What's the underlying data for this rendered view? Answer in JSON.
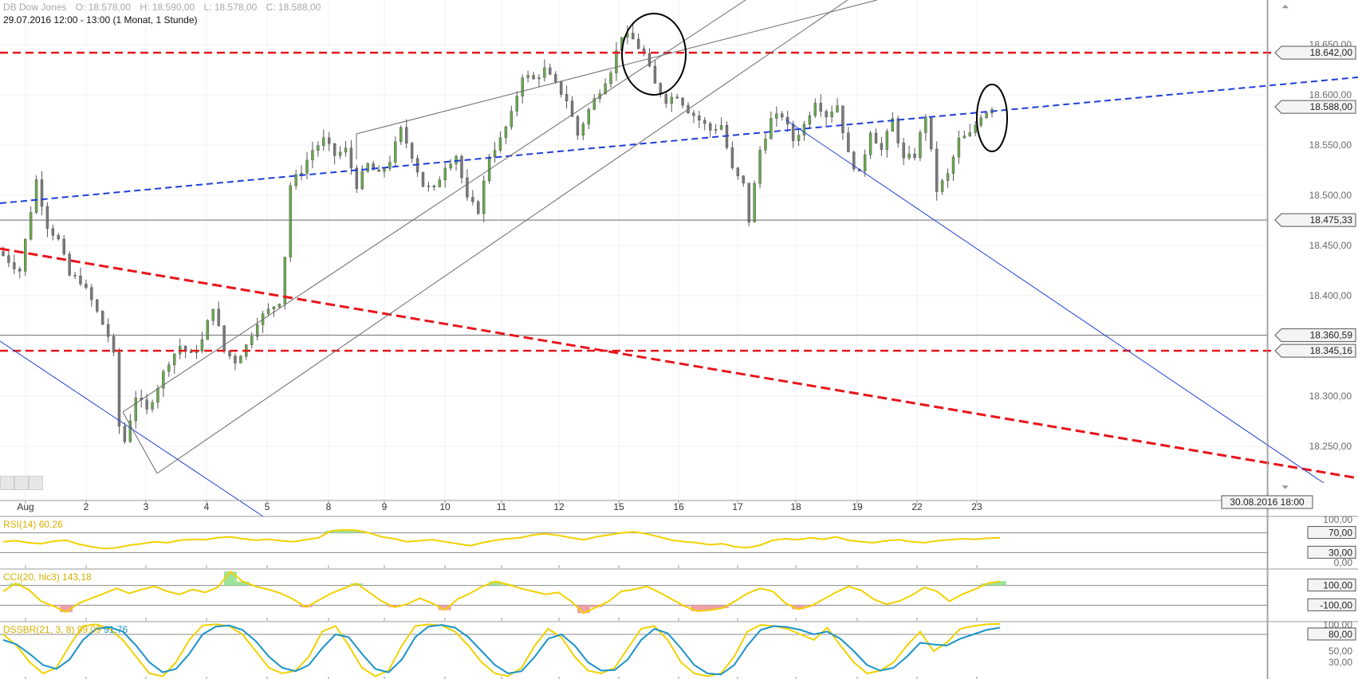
{
  "header": {
    "instrument": "DB Dow Jones",
    "open": "O: 18.578,00",
    "high": "H: 18.590,00",
    "low": "L: 18.578,00",
    "close": "C: 18.588,00",
    "range": "29.07.2016 12:00 - 13:00 (1 Monat, 1 Stunde)"
  },
  "crosshair_date": "30.08.2016 18:00",
  "colors": {
    "candle_up": "#6aa84f",
    "candle_down": "#7a7a7a",
    "trend_red": "#e8151b",
    "trend_blue": "#1f3fd8",
    "indicator_yellow": "#f2d100",
    "indicator_blue": "#1a93c8",
    "fill_green": "#9fe29a",
    "fill_red": "#f0a0a8",
    "level_gray": "#6a6a6a"
  },
  "chart_data": [
    {
      "type": "candlestick",
      "title": "DB Dow Jones",
      "x_labels": [
        "Aug",
        "2",
        "3",
        "4",
        "5",
        "8",
        "9",
        "10",
        "11",
        "12",
        "15",
        "16",
        "17",
        "18",
        "19",
        "22",
        "23"
      ],
      "y_ticks": [
        "18.650,00",
        "18.600,00",
        "18.550,00",
        "18.500,00",
        "18.450,00",
        "18.400,00",
        "18.300,00",
        "18.250,00"
      ],
      "ylim": [
        18240,
        18675
      ],
      "grid": true,
      "level_labels": [
        {
          "text": "18.642,00",
          "value": 18642
        },
        {
          "text": "18.588,00",
          "value": 18588
        },
        {
          "text": "18.475,33",
          "value": 18475.33
        },
        {
          "text": "18.360,59",
          "value": 18360.59
        },
        {
          "text": "18.345,16",
          "value": 18345.16
        }
      ],
      "horizontal_lines": [
        {
          "value": 18642,
          "style": "red-dashed"
        },
        {
          "value": 18345.16,
          "style": "red-dashed"
        },
        {
          "value": 18475.33,
          "style": "gray-solid"
        },
        {
          "value": 18360.59,
          "style": "gray-solid"
        }
      ],
      "close_path": [
        [
          0,
          18440
        ],
        [
          3,
          18425
        ],
        [
          6,
          18515
        ],
        [
          8,
          18470
        ],
        [
          10,
          18455
        ],
        [
          12,
          18420
        ],
        [
          14,
          18415
        ],
        [
          16,
          18395
        ],
        [
          19,
          18360
        ],
        [
          20,
          18340
        ],
        [
          21,
          18270
        ],
        [
          22,
          18255
        ],
        [
          24,
          18300
        ],
        [
          26,
          18285
        ],
        [
          28,
          18310
        ],
        [
          30,
          18335
        ],
        [
          32,
          18350
        ],
        [
          34,
          18340
        ],
        [
          36,
          18355
        ],
        [
          38,
          18390
        ],
        [
          40,
          18345
        ],
        [
          42,
          18335
        ],
        [
          44,
          18350
        ],
        [
          46,
          18375
        ],
        [
          48,
          18385
        ],
        [
          50,
          18395
        ],
        [
          51,
          18440
        ],
        [
          52,
          18510
        ],
        [
          54,
          18525
        ],
        [
          56,
          18545
        ],
        [
          58,
          18555
        ],
        [
          60,
          18540
        ],
        [
          62,
          18545
        ],
        [
          64,
          18510
        ],
        [
          66,
          18530
        ],
        [
          68,
          18520
        ],
        [
          70,
          18535
        ],
        [
          72,
          18565
        ],
        [
          74,
          18540
        ],
        [
          76,
          18510
        ],
        [
          78,
          18505
        ],
        [
          80,
          18530
        ],
        [
          82,
          18540
        ],
        [
          84,
          18495
        ],
        [
          86,
          18485
        ],
        [
          88,
          18540
        ],
        [
          90,
          18555
        ],
        [
          92,
          18580
        ],
        [
          94,
          18620
        ],
        [
          96,
          18615
        ],
        [
          98,
          18625
        ],
        [
          100,
          18610
        ],
        [
          102,
          18595
        ],
        [
          104,
          18560
        ],
        [
          106,
          18585
        ],
        [
          108,
          18605
        ],
        [
          110,
          18625
        ],
        [
          112,
          18660
        ],
        [
          114,
          18655
        ],
        [
          116,
          18640
        ],
        [
          118,
          18610
        ],
        [
          120,
          18595
        ],
        [
          122,
          18600
        ],
        [
          124,
          18585
        ],
        [
          126,
          18575
        ],
        [
          128,
          18565
        ],
        [
          130,
          18570
        ],
        [
          132,
          18525
        ],
        [
          134,
          18510
        ],
        [
          135,
          18475
        ],
        [
          137,
          18545
        ],
        [
          139,
          18575
        ],
        [
          141,
          18580
        ],
        [
          143,
          18555
        ],
        [
          145,
          18570
        ],
        [
          147,
          18595
        ],
        [
          149,
          18580
        ],
        [
          151,
          18590
        ],
        [
          153,
          18540
        ],
        [
          155,
          18520
        ],
        [
          157,
          18565
        ],
        [
          159,
          18545
        ],
        [
          161,
          18575
        ],
        [
          163,
          18535
        ],
        [
          165,
          18540
        ],
        [
          167,
          18580
        ],
        [
          169,
          18505
        ],
        [
          171,
          18520
        ],
        [
          173,
          18555
        ],
        [
          175,
          18560
        ],
        [
          177,
          18580
        ],
        [
          179,
          18588
        ]
      ],
      "annotations": [
        {
          "type": "circle",
          "target": "August 15 high",
          "value": 18660
        },
        {
          "type": "circle",
          "target": "August 23 last",
          "value": 18588
        }
      ]
    },
    {
      "type": "line",
      "title": "RSI(14)",
      "latest_value": "60,26",
      "y_ticks": [
        "100,00",
        "70,00",
        "30,00",
        "0,00"
      ],
      "ylim": [
        0,
        100
      ],
      "thresholds": [
        70,
        30
      ],
      "values": [
        52,
        54,
        50,
        48,
        53,
        55,
        47,
        42,
        38,
        40,
        45,
        48,
        52,
        50,
        55,
        57,
        56,
        60,
        62,
        58,
        55,
        57,
        54,
        52,
        56,
        60,
        74,
        76,
        75,
        70,
        62,
        58,
        52,
        54,
        56,
        52,
        48,
        44,
        50,
        55,
        58,
        60,
        66,
        68,
        65,
        60,
        56,
        62,
        66,
        70,
        72,
        68,
        62,
        55,
        52,
        50,
        46,
        48,
        42,
        40,
        45,
        55,
        58,
        56,
        60,
        57,
        62,
        55,
        52,
        50,
        54,
        56,
        52,
        50,
        54,
        56,
        58,
        57,
        59,
        60
      ]
    },
    {
      "type": "line",
      "title": "CCI(20, hlc3)",
      "latest_value": "143,18",
      "y_ticks": [
        "100,00",
        "-100,00"
      ],
      "ylim": [
        -250,
        250
      ],
      "thresholds": [
        100,
        -100
      ],
      "values": [
        40,
        120,
        60,
        -60,
        -110,
        -170,
        -80,
        -30,
        20,
        70,
        20,
        60,
        90,
        40,
        10,
        60,
        30,
        80,
        240,
        140,
        90,
        60,
        20,
        -40,
        -120,
        -50,
        20,
        70,
        120,
        30,
        -60,
        -120,
        -90,
        -30,
        -80,
        -150,
        -40,
        20,
        90,
        140,
        110,
        70,
        40,
        10,
        30,
        -60,
        -180,
        -120,
        -60,
        40,
        60,
        90,
        30,
        -40,
        -110,
        -160,
        -150,
        -130,
        -60,
        20,
        70,
        40,
        -80,
        -140,
        -110,
        -40,
        30,
        90,
        50,
        -40,
        -90,
        -60,
        0,
        80,
        40,
        -60,
        10,
        60,
        120,
        143
      ]
    },
    {
      "type": "line",
      "title": "DSSBR(21, 3, 8)",
      "series": [
        {
          "name": "99,09",
          "values": [
            80,
            60,
            30,
            10,
            20,
            60,
            95,
            98,
            90,
            70,
            40,
            10,
            5,
            30,
            70,
            96,
            98,
            95,
            80,
            50,
            20,
            10,
            15,
            40,
            85,
            95,
            60,
            20,
            5,
            15,
            60,
            95,
            98,
            96,
            85,
            60,
            30,
            10,
            5,
            20,
            60,
            90,
            75,
            40,
            15,
            10,
            20,
            55,
            90,
            95,
            70,
            30,
            10,
            5,
            10,
            40,
            85,
            97,
            95,
            90,
            80,
            70,
            92,
            60,
            30,
            10,
            15,
            30,
            60,
            85,
            50,
            65,
            90,
            95,
            98,
            99
          ]
        },
        {
          "name": "91,76",
          "values": [
            70,
            62,
            45,
            25,
            18,
            35,
            70,
            90,
            93,
            85,
            60,
            30,
            12,
            18,
            45,
            80,
            94,
            96,
            88,
            68,
            40,
            20,
            14,
            25,
            55,
            80,
            75,
            45,
            18,
            12,
            35,
            75,
            94,
            97,
            92,
            75,
            50,
            25,
            10,
            14,
            40,
            72,
            80,
            60,
            30,
            15,
            16,
            35,
            70,
            90,
            82,
            55,
            25,
            10,
            8,
            25,
            60,
            88,
            95,
            93,
            88,
            80,
            85,
            72,
            50,
            25,
            15,
            20,
            40,
            65,
            62,
            60,
            72,
            80,
            88,
            92
          ]
        }
      ],
      "y_ticks": [
        "100,00",
        "80,00",
        "50,00",
        "30,00"
      ],
      "ylim": [
        0,
        100
      ],
      "thresholds": [
        80
      ]
    }
  ]
}
